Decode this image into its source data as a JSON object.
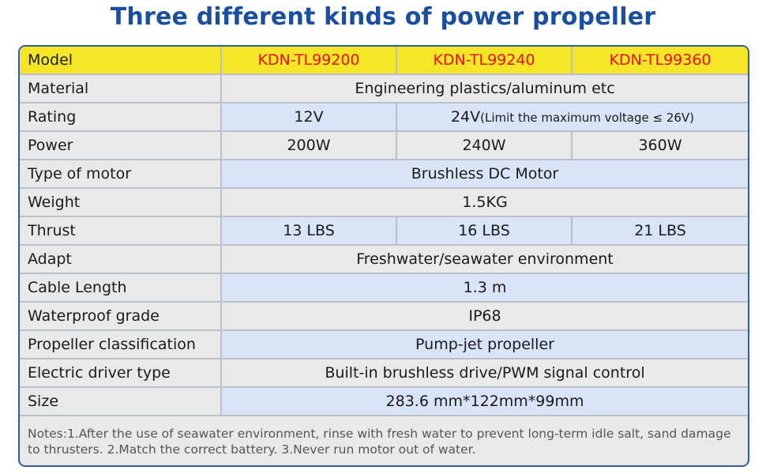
{
  "title": "Three different kinds of power propeller",
  "colors": {
    "title": "#1a4fa0",
    "frame_border": "#2f5f9e",
    "header_row": "#f5e627",
    "model_text": "#e8101b",
    "row_gray": "#e9e9e9",
    "row_blue": "#d9e4f7"
  },
  "table": {
    "header": {
      "label": "Model",
      "models": [
        "KDN-TL99200",
        "KDN-TL99240",
        "KDN-TL99360"
      ]
    },
    "rows": {
      "material": {
        "label": "Material",
        "value": "Engineering plastics/aluminum etc"
      },
      "rating": {
        "label": "Rating",
        "v1": "12V",
        "v2": "24V",
        "v2_note": "(Limit the maximum voltage ≤ 26V)"
      },
      "power": {
        "label": "Power",
        "values": [
          "200W",
          "240W",
          "360W"
        ]
      },
      "motor": {
        "label": "Type of motor",
        "value": "Brushless DC Motor"
      },
      "weight": {
        "label": "Weight",
        "value": "1.5KG"
      },
      "thrust": {
        "label": "Thrust",
        "values": [
          "13 LBS",
          "16 LBS",
          "21 LBS"
        ]
      },
      "adapt": {
        "label": "Adapt",
        "value": "Freshwater/seawater environment"
      },
      "cable": {
        "label": "Cable Length",
        "value": "1.3 m"
      },
      "waterproof": {
        "label": "Waterproof grade",
        "value": "IP68"
      },
      "propeller": {
        "label": "Propeller classification",
        "value": "Pump-jet propeller"
      },
      "driver": {
        "label": "Electric driver type",
        "value": "Built-in brushless drive/PWM signal control"
      },
      "size": {
        "label": "Size",
        "value": "283.6 mm*122mm*99mm"
      }
    }
  },
  "notes": "Notes:1.After the use of seawater environment, rinse with fresh water to prevent long-term idle salt, sand damage to thrusters. 2.Match the correct battery. 3.Never run motor out of water."
}
